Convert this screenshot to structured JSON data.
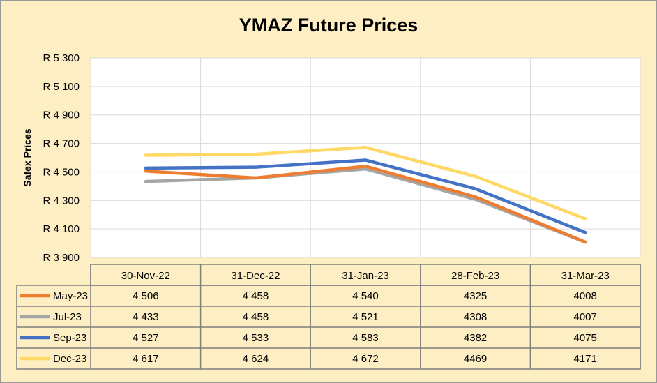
{
  "chart_data": {
    "type": "line",
    "title": "YMAZ Future Prices",
    "ylabel": "Safex Prices",
    "xlabel": "",
    "ylim": [
      3900,
      5300
    ],
    "yticks": [
      3900,
      4100,
      4300,
      4500,
      4700,
      4900,
      5100,
      5300
    ],
    "ytick_labels": [
      "R 3 900",
      "R 4 100",
      "R 4 300",
      "R 4 500",
      "R 4 700",
      "R 4 900",
      "R 5 100",
      "R 5 300"
    ],
    "grid": true,
    "legend": "data-table",
    "categories": [
      "30-Nov-22",
      "31-Dec-22",
      "31-Jan-23",
      "28-Feb-23",
      "31-Mar-23"
    ],
    "series": [
      {
        "name": "May-23",
        "color": "#ed7d31",
        "values": [
          4506,
          4458,
          4540,
          4325,
          4008
        ],
        "labels": [
          "4 506",
          "4 458",
          "4 540",
          "4325",
          "4008"
        ]
      },
      {
        "name": "Jul-23",
        "color": "#a5a5a5",
        "values": [
          4433,
          4458,
          4521,
          4308,
          4007
        ],
        "labels": [
          "4 433",
          "4 458",
          "4 521",
          "4308",
          "4007"
        ]
      },
      {
        "name": "Sep-23",
        "color": "#4472c4",
        "values": [
          4527,
          4533,
          4583,
          4382,
          4075
        ],
        "labels": [
          "4 527",
          "4 533",
          "4 583",
          "4382",
          "4075"
        ]
      },
      {
        "name": "Dec-23",
        "color": "#ffd966",
        "values": [
          4617,
          4624,
          4672,
          4469,
          4171
        ],
        "labels": [
          "4 617",
          "4 624",
          "4 672",
          "4469",
          "4171"
        ]
      }
    ]
  }
}
